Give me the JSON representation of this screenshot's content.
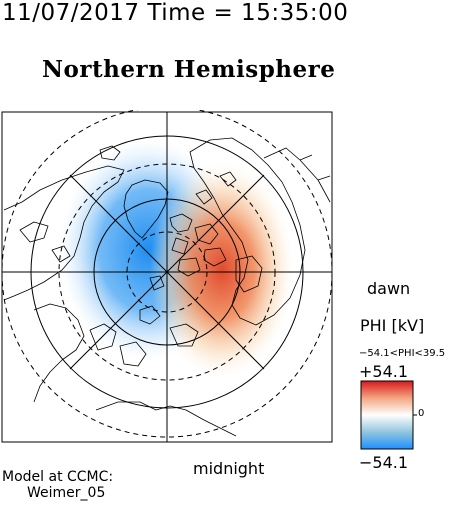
{
  "header": {
    "timestamp": "11/07/2017 Time = 15:35:00",
    "title": "Northern Hemisphere"
  },
  "map": {
    "projection": "polar",
    "orientation_labels": {
      "right": "dawn",
      "bottom": "midnight"
    },
    "potential_pattern": {
      "negative_cell": {
        "side": "dusk",
        "color": "#2f8ff0"
      },
      "positive_cell": {
        "side": "dawn",
        "color": "#e5452f"
      }
    }
  },
  "legend": {
    "title": "PHI [kV]",
    "range_text": "−54.1<PHI<39.5",
    "max_label": "+54.1",
    "zero_label": "0",
    "min_label": "−54.1",
    "phi_min": -54.1,
    "phi_max": 39.5,
    "scale_limit": 54.1,
    "colors": {
      "high": "#d7191c",
      "mid": "#ffffff",
      "low": "#1e90ff"
    }
  },
  "footer": {
    "model_line1": "Model at CCMC:",
    "model_line2": "Weimer_05"
  }
}
